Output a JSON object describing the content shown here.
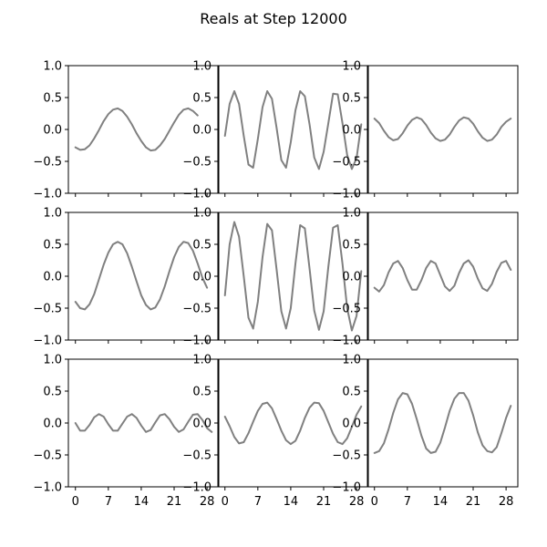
{
  "chart_data": {
    "type": "line",
    "title": "Reals at Step 12000",
    "layout": "3x3 grid of subplots",
    "line_color": "#808080",
    "ylim": [
      -1.0,
      1.0
    ],
    "xlim": [
      -1.5,
      30.5
    ],
    "y_ticks": [
      -1.0,
      -0.5,
      0.0,
      0.5,
      1.0
    ],
    "y_tick_labels": [
      "−1.0",
      "−0.5",
      "0.0",
      "0.5",
      "1.0"
    ],
    "x_ticks": [
      0,
      7,
      14,
      21,
      28
    ],
    "x_tick_labels": [
      "0",
      "7",
      "14",
      "21",
      "28"
    ],
    "x_ticks_labeled_on": "bottom row only",
    "grid": false,
    "subplots": [
      {
        "values": [
          -0.28,
          -0.32,
          -0.31,
          -0.25,
          -0.14,
          -0.01,
          0.13,
          0.24,
          0.31,
          0.33,
          0.29,
          0.2,
          0.08,
          -0.06,
          -0.18,
          -0.28,
          -0.33,
          -0.32,
          -0.25,
          -0.15,
          -0.02,
          0.11,
          0.23,
          0.31,
          0.33,
          0.29,
          0.22
        ]
      },
      {
        "values": [
          -0.1,
          0.4,
          0.6,
          0.4,
          -0.1,
          -0.55,
          -0.6,
          -0.15,
          0.35,
          0.6,
          0.48,
          0.02,
          -0.48,
          -0.6,
          -0.2,
          0.3,
          0.6,
          0.52,
          0.08,
          -0.44,
          -0.62,
          -0.35,
          0.1,
          0.56,
          0.55,
          0.1,
          -0.4,
          -0.62,
          -0.45,
          0.08
        ]
      },
      {
        "values": [
          0.17,
          0.1,
          -0.02,
          -0.12,
          -0.17,
          -0.15,
          -0.06,
          0.06,
          0.15,
          0.19,
          0.16,
          0.07,
          -0.05,
          -0.14,
          -0.18,
          -0.16,
          -0.08,
          0.04,
          0.14,
          0.19,
          0.17,
          0.09,
          -0.03,
          -0.13,
          -0.18,
          -0.16,
          -0.08,
          0.04,
          0.12,
          0.17
        ]
      },
      {
        "values": [
          -0.4,
          -0.5,
          -0.52,
          -0.44,
          -0.28,
          -0.05,
          0.18,
          0.37,
          0.5,
          0.54,
          0.5,
          0.36,
          0.15,
          -0.08,
          -0.3,
          -0.45,
          -0.52,
          -0.49,
          -0.36,
          -0.16,
          0.08,
          0.3,
          0.46,
          0.54,
          0.52,
          0.4,
          0.2,
          -0.02,
          -0.18
        ]
      },
      {
        "values": [
          -0.3,
          0.5,
          0.85,
          0.62,
          0.0,
          -0.65,
          -0.82,
          -0.4,
          0.3,
          0.82,
          0.72,
          0.1,
          -0.55,
          -0.82,
          -0.5,
          0.2,
          0.8,
          0.75,
          0.12,
          -0.54,
          -0.84,
          -0.55,
          0.15,
          0.76,
          0.8,
          0.2,
          -0.5,
          -0.85,
          -0.62,
          0.08
        ]
      },
      {
        "values": [
          -0.18,
          -0.24,
          -0.14,
          0.06,
          0.2,
          0.24,
          0.13,
          -0.06,
          -0.21,
          -0.21,
          -0.06,
          0.13,
          0.24,
          0.2,
          0.02,
          -0.16,
          -0.23,
          -0.15,
          0.05,
          0.2,
          0.25,
          0.15,
          -0.04,
          -0.19,
          -0.23,
          -0.12,
          0.07,
          0.21,
          0.24,
          0.1
        ]
      },
      {
        "values": [
          0.0,
          -0.12,
          -0.12,
          -0.03,
          0.09,
          0.14,
          0.1,
          -0.02,
          -0.12,
          -0.12,
          -0.01,
          0.1,
          0.14,
          0.08,
          -0.04,
          -0.14,
          -0.11,
          0.01,
          0.12,
          0.14,
          0.06,
          -0.06,
          -0.14,
          -0.1,
          0.02,
          0.13,
          0.14,
          0.05,
          -0.08,
          -0.14
        ]
      },
      {
        "values": [
          0.1,
          -0.05,
          -0.22,
          -0.32,
          -0.3,
          -0.16,
          0.02,
          0.19,
          0.3,
          0.32,
          0.23,
          0.06,
          -0.12,
          -0.27,
          -0.33,
          -0.28,
          -0.12,
          0.08,
          0.24,
          0.32,
          0.31,
          0.19,
          0.01,
          -0.17,
          -0.3,
          -0.33,
          -0.24,
          -0.06,
          0.13,
          0.26
        ]
      },
      {
        "values": [
          -0.47,
          -0.44,
          -0.32,
          -0.1,
          0.16,
          0.37,
          0.47,
          0.45,
          0.3,
          0.06,
          -0.2,
          -0.4,
          -0.47,
          -0.45,
          -0.31,
          -0.07,
          0.19,
          0.38,
          0.47,
          0.47,
          0.35,
          0.12,
          -0.15,
          -0.35,
          -0.44,
          -0.46,
          -0.38,
          -0.16,
          0.08,
          0.27
        ]
      }
    ]
  }
}
